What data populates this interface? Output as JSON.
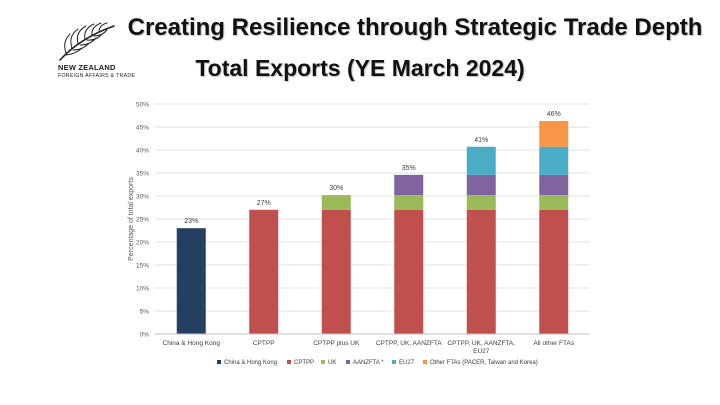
{
  "logo": {
    "name": "NEW ZEALAND",
    "subname": "FOREIGN AFFAIRS & TRADE"
  },
  "header": {
    "title_line1": "Creating Resilience through Strategic Trade Depth",
    "title_line2": "Total Exports (YE March 2024)"
  },
  "chart_data": {
    "type": "bar",
    "stacked": true,
    "ylabel": "Percentage of total exports",
    "ylim": [
      0,
      50
    ],
    "yticks": [
      0,
      5,
      10,
      15,
      20,
      25,
      30,
      35,
      40,
      45,
      50
    ],
    "ytick_suffix": "%",
    "grid": true,
    "legend_position": "bottom",
    "categories": [
      [
        "China & Hong Kong"
      ],
      [
        "CPTPP"
      ],
      [
        "CPTPP plus UK"
      ],
      [
        "CPTPP, UK, AANZFTA"
      ],
      [
        "CPTPP, UK, AANZFTA,",
        "EU27"
      ],
      [
        "All other FTAs"
      ]
    ],
    "totals": [
      "23%",
      "27%",
      "30%",
      "35%",
      "41%",
      "46%"
    ],
    "series": [
      {
        "name": "China & Hong Kong",
        "color": "#243f60",
        "values": [
          23,
          0,
          0,
          0,
          0,
          0
        ]
      },
      {
        "name": "CPTPP",
        "color": "#c0504d",
        "values": [
          0,
          27,
          27,
          27,
          27,
          27
        ]
      },
      {
        "name": "UK",
        "color": "#9bbb59",
        "values": [
          0,
          0,
          3.2,
          3.2,
          3.2,
          3.2
        ]
      },
      {
        "name": "AANZFTA *",
        "color": "#8064a2",
        "values": [
          0,
          0,
          0,
          4.4,
          4.4,
          4.4
        ]
      },
      {
        "name": "EU27",
        "color": "#4bacc6",
        "values": [
          0,
          0,
          0,
          0,
          6.1,
          6.1
        ]
      },
      {
        "name": "Other FTAs (PACER, Taiwan and Korea)",
        "color": "#f79646",
        "values": [
          0,
          0,
          0,
          0,
          0,
          5.6
        ]
      }
    ]
  }
}
